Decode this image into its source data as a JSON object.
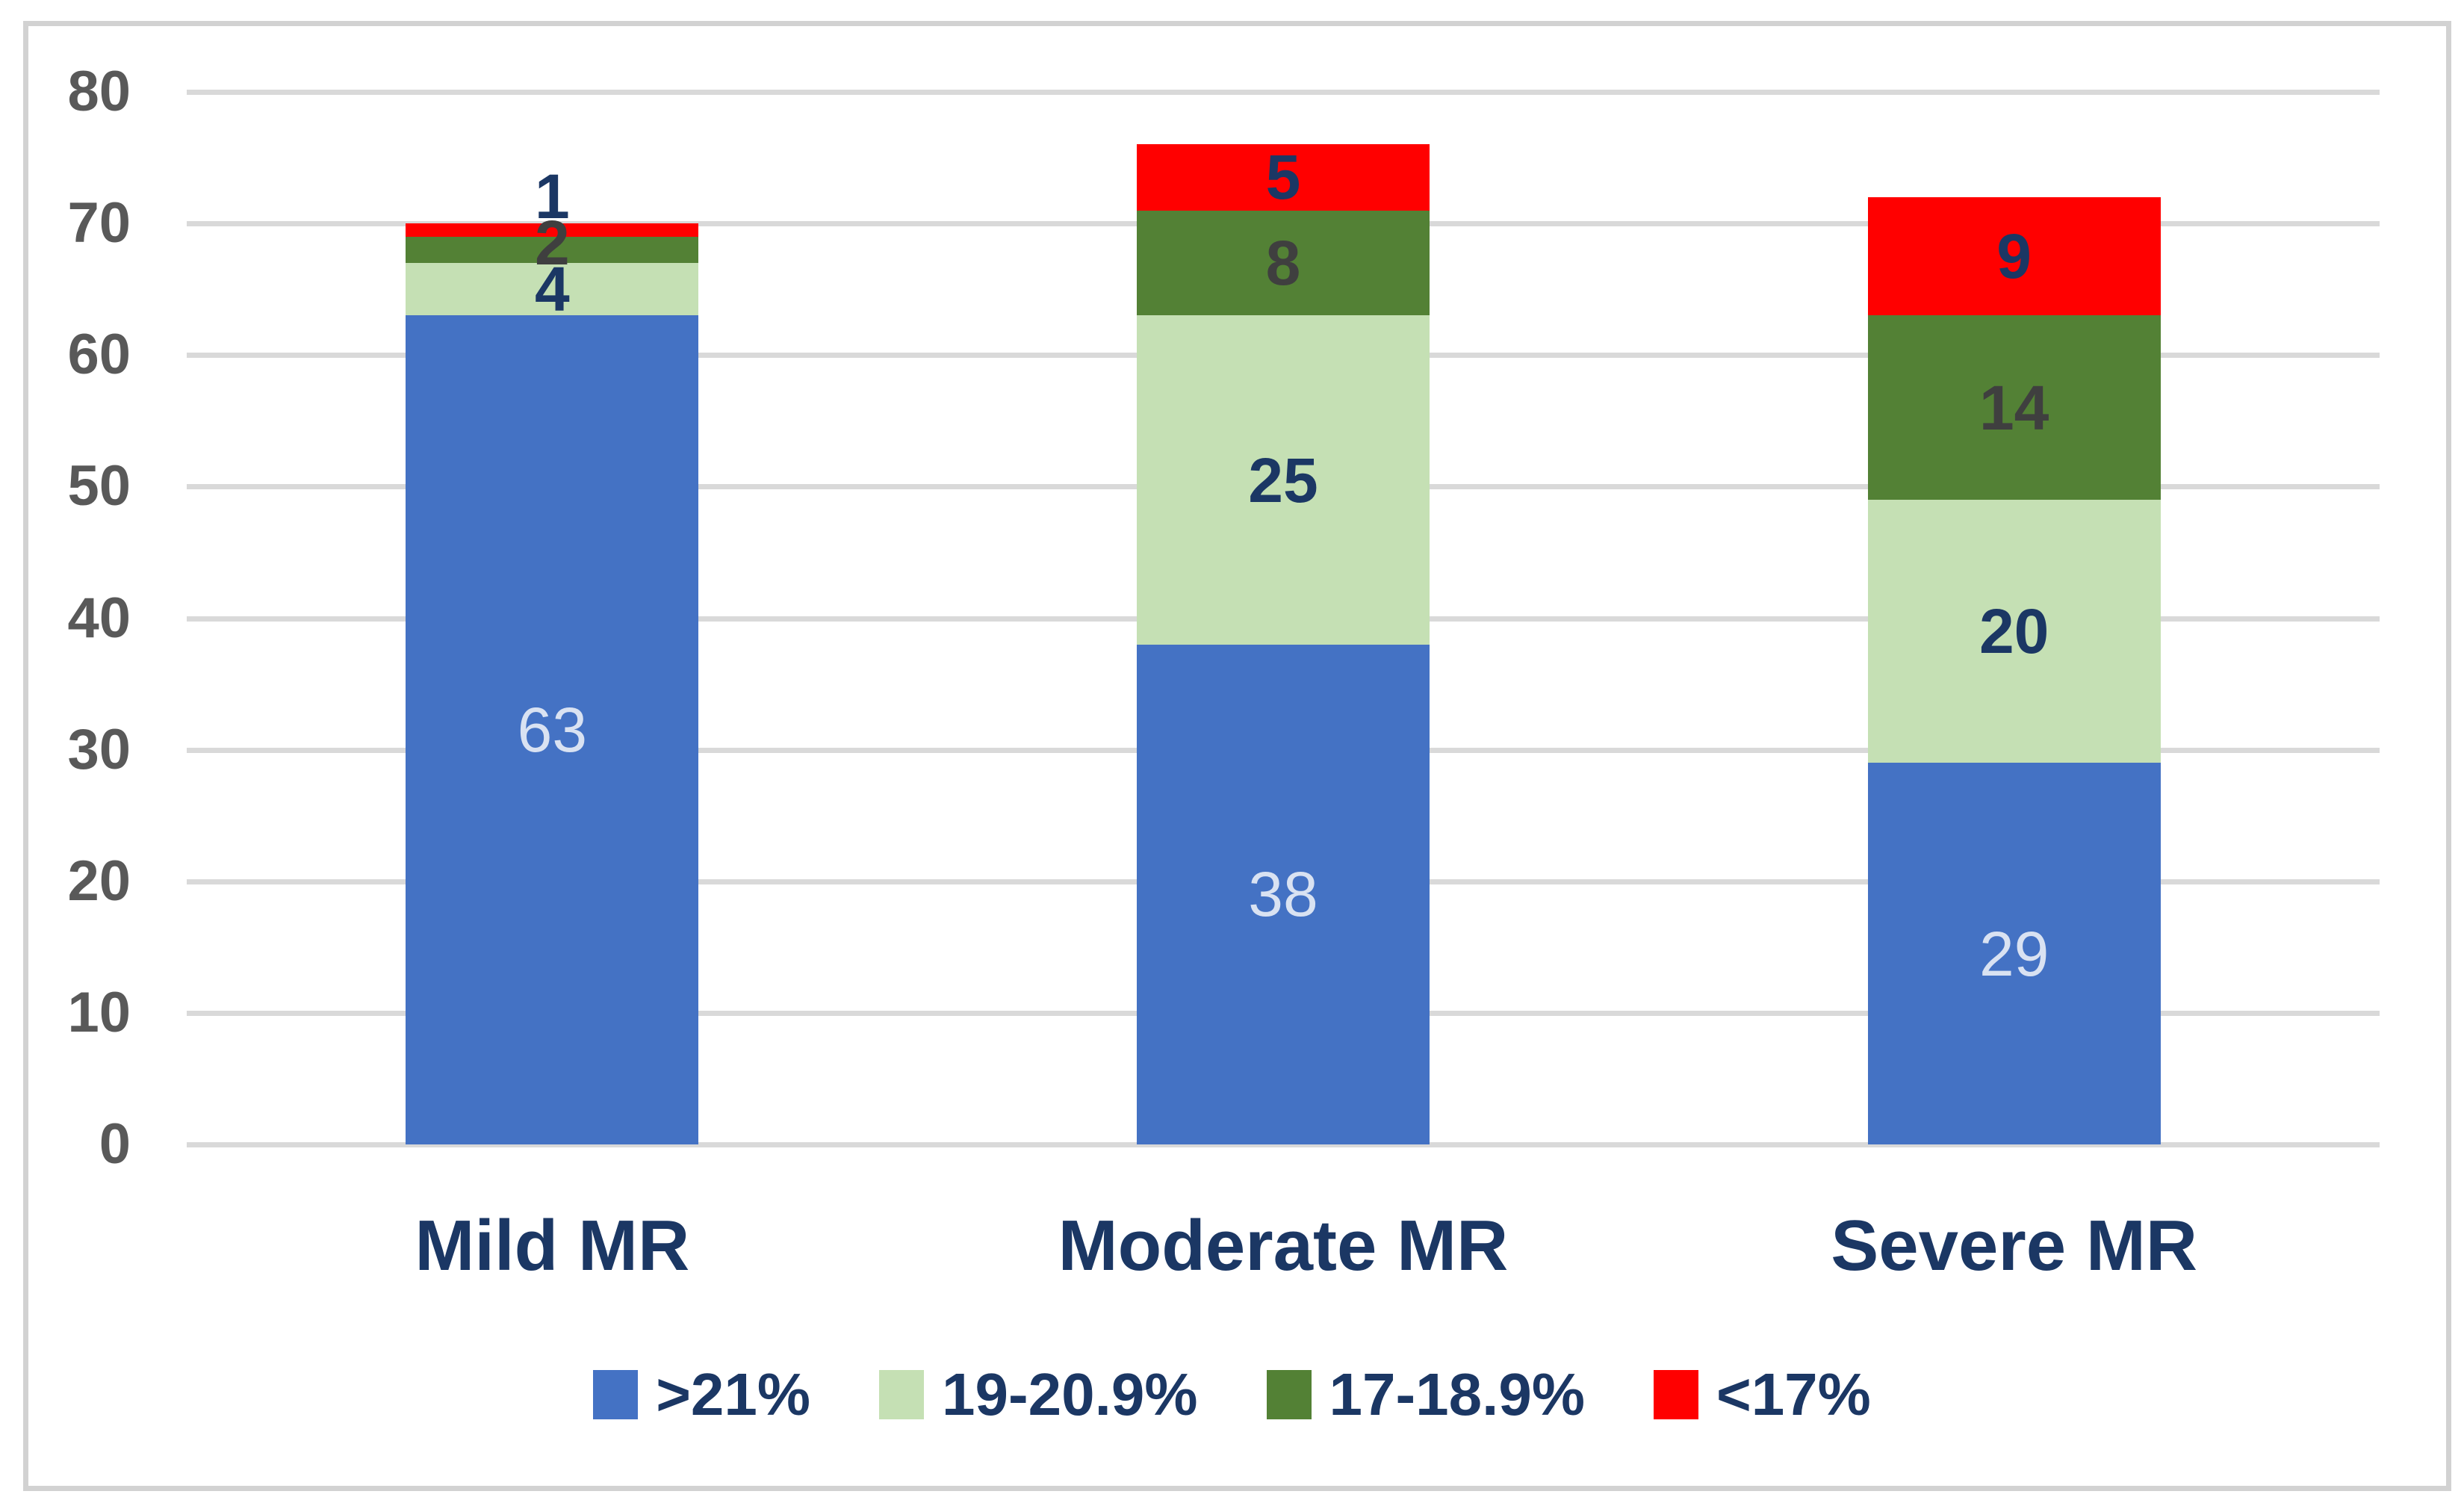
{
  "chart_data": {
    "type": "bar",
    "stacked": true,
    "title": "",
    "categories": [
      "Mild MR",
      "Moderate MR",
      "Severe MR"
    ],
    "series": [
      {
        "name": ">21%",
        "color": "#4472C4",
        "label_color": "#D9E2F2",
        "label_bold": false,
        "values": [
          63,
          38,
          29
        ]
      },
      {
        "name": "19-20.9%",
        "color": "#C5E0B4",
        "label_color": "#1B3764",
        "label_bold": true,
        "values": [
          4,
          25,
          20
        ]
      },
      {
        "name": "17-18.9%",
        "color": "#538135",
        "label_color": "#3F3F3F",
        "label_bold": true,
        "values": [
          2,
          8,
          14
        ]
      },
      {
        "name": "<17%",
        "color": "#FF0000",
        "label_color": "#1B3764",
        "label_bold": true,
        "values": [
          1,
          5,
          9
        ]
      }
    ],
    "y_axis": {
      "min": 0,
      "max": 80,
      "step": 10,
      "ticks": [
        "0",
        "10",
        "20",
        "30",
        "40",
        "50",
        "60",
        "70",
        "80"
      ],
      "tick_color": "#595959"
    },
    "grid": true,
    "gridline_color": "#D9D9D9",
    "plot_border_color": "#D2D2D2",
    "category_label_color": "#1B3764",
    "legend_position": "bottom",
    "legend_text_color": "#1B3764",
    "xlabel": "",
    "ylabel": ""
  }
}
